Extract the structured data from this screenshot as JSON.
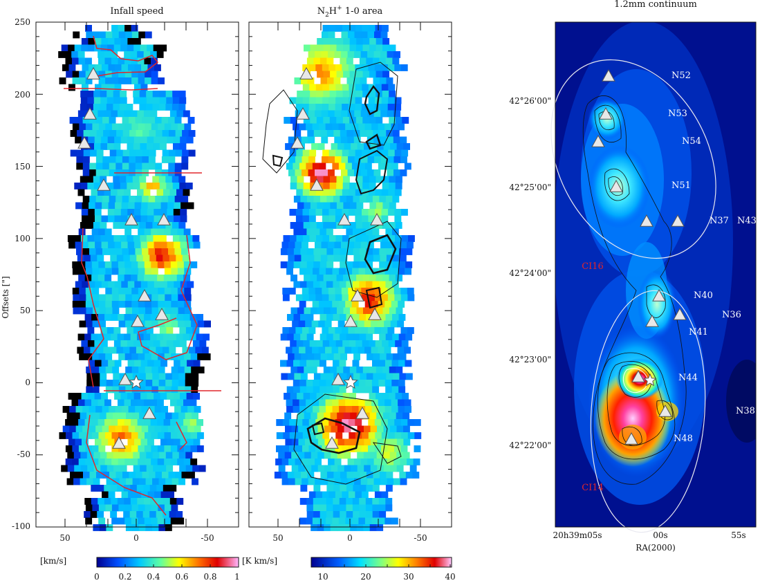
{
  "panels": {
    "infall": {
      "title": "Infall speed",
      "ylabel": "Offsets [\"]",
      "yticks": [
        "250",
        "200",
        "150",
        "100",
        "50",
        "0",
        "-50",
        "-100"
      ],
      "xticks": [
        "50",
        "0",
        "-50"
      ],
      "colorbar": {
        "unit": "[km/s]",
        "ticks": [
          "0",
          "0.2",
          "0.4",
          "0.6",
          "0.8",
          "1"
        ]
      }
    },
    "n2h": {
      "title_main": "N",
      "title_sub1": "2",
      "title_mid": "H",
      "title_sup": "+",
      "title_rest": " 1-0 area",
      "xticks": [
        "50",
        "0",
        "-50"
      ],
      "colorbar": {
        "unit": "[K km/s]",
        "ticks": [
          "10",
          "20",
          "30",
          "40"
        ]
      }
    },
    "continuum": {
      "title": "1.2mm continuum",
      "dec_ticks": [
        "42°26'00\"",
        "42°25'00\"",
        "42°24'00\"",
        "42°23'00\"",
        "42°22'00\""
      ],
      "ra_ticks": [
        "20h39m05s",
        "00s",
        "55s"
      ],
      "ra_label": "RA(2000)",
      "sources": [
        {
          "name": "N52",
          "color": "#ffffff"
        },
        {
          "name": "N53",
          "color": "#ffffff"
        },
        {
          "name": "N54",
          "color": "#ffffff"
        },
        {
          "name": "N51",
          "color": "#ffffff"
        },
        {
          "name": "N37",
          "color": "#ffffff"
        },
        {
          "name": "N43",
          "color": "#ffffff"
        },
        {
          "name": "CI16",
          "color": "#e0262b"
        },
        {
          "name": "N40",
          "color": "#ffffff"
        },
        {
          "name": "N36",
          "color": "#ffffff"
        },
        {
          "name": "N41",
          "color": "#ffffff"
        },
        {
          "name": "N44",
          "color": "#ffffff"
        },
        {
          "name": "N38",
          "color": "#ffffff"
        },
        {
          "name": "N48",
          "color": "#ffffff"
        },
        {
          "name": "CI14",
          "color": "#e0262b"
        }
      ]
    }
  }
}
